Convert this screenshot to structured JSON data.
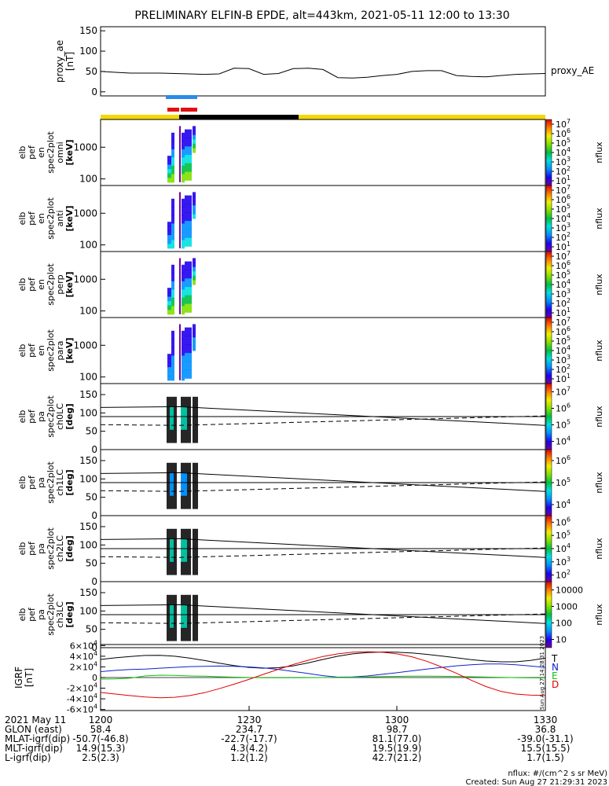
{
  "title": "PRELIMINARY ELFIN-B EPDE, alt=443km, 2021-05-11 12:00 to 13:30",
  "colors": {
    "bar_yellow": "#f5d800",
    "bar_black": "#000000",
    "mark_blue": "#2a8ce8",
    "mark_red": "#e01010",
    "grf_black": "#000000",
    "grf_blue": "#1020d0",
    "grf_green": "#10c010",
    "grf_red": "#e00000"
  },
  "chart_data": [
    {
      "type": "line",
      "panel": "proxy_ae",
      "ylabel": "proxy_ae\n[nT]",
      "ylim": [
        -10,
        160
      ],
      "yticks": [
        0,
        50,
        100,
        150
      ],
      "legend": "proxy_AE",
      "x": [
        0,
        3,
        6,
        9,
        12,
        15,
        18,
        21,
        24,
        27,
        30,
        33,
        36,
        39,
        42,
        45,
        48,
        51,
        54,
        57,
        60,
        63,
        66,
        69,
        72,
        75,
        78,
        81,
        84,
        87,
        90
      ],
      "values": [
        50,
        48,
        46,
        46,
        46,
        45,
        44,
        43,
        44,
        58,
        57,
        43,
        45,
        57,
        58,
        55,
        35,
        34,
        36,
        40,
        43,
        50,
        52,
        52,
        40,
        38,
        37,
        40,
        43,
        44,
        45
      ]
    },
    {
      "type": "heatmap",
      "panel": "omni",
      "ylabel": "elb\npef\nen\nspec2plot\nomni\n[keV]",
      "yticks": [
        "100",
        "1000"
      ],
      "colorbar": {
        "label": "nflux",
        "ticks": [
          "10^1",
          "10^2",
          "10^3",
          "10^4",
          "10^5",
          "10^6",
          "10^7"
        ]
      }
    },
    {
      "type": "heatmap",
      "panel": "anti",
      "ylabel": "elb\npef\nen\nspec2plot\nanti\n[keV]",
      "yticks": [
        "100",
        "1000"
      ],
      "colorbar": {
        "label": "nflux",
        "ticks": [
          "10^1",
          "10^2",
          "10^3",
          "10^4",
          "10^5",
          "10^6",
          "10^7"
        ]
      }
    },
    {
      "type": "heatmap",
      "panel": "perp",
      "ylabel": "elb\npef\nen\nspec2plot\nperp\n[keV]",
      "yticks": [
        "100",
        "1000"
      ],
      "colorbar": {
        "label": "nflux",
        "ticks": [
          "10^1",
          "10^2",
          "10^3",
          "10^4",
          "10^5",
          "10^6",
          "10^7"
        ]
      }
    },
    {
      "type": "heatmap",
      "panel": "para",
      "ylabel": "elb\npef\nen\nspec2plot\npara\n[keV]",
      "yticks": [
        "100",
        "1000"
      ],
      "colorbar": {
        "label": "nflux",
        "ticks": [
          "10^1",
          "10^2",
          "10^3",
          "10^4",
          "10^5",
          "10^6",
          "10^7"
        ]
      }
    },
    {
      "type": "heatmap",
      "panel": "ch0LC",
      "ylabel": "elb\npef\npa\nspec2plot\nch0LC\n[deg]",
      "yticks": [
        "0",
        "50",
        "100",
        "150"
      ],
      "colorbar": {
        "label": "nflux",
        "ticks": [
          "10^4",
          "10^5",
          "10^6",
          "10^7"
        ]
      }
    },
    {
      "type": "heatmap",
      "panel": "ch1LC",
      "ylabel": "elb\npef\npa\nspec2plot\nch1LC\n[deg]",
      "yticks": [
        "0",
        "50",
        "100",
        "150"
      ],
      "colorbar": {
        "label": "nflux",
        "ticks": [
          "10^4",
          "10^5",
          "10^6"
        ]
      }
    },
    {
      "type": "heatmap",
      "panel": "ch2LC",
      "ylabel": "elb\npef\npa\nspec2plot\nch2LC\n[deg]",
      "yticks": [
        "0",
        "50",
        "100",
        "150"
      ],
      "colorbar": {
        "label": "nflux",
        "ticks": [
          "10^2",
          "10^3",
          "10^4",
          "10^5",
          "10^6"
        ]
      }
    },
    {
      "type": "heatmap",
      "panel": "ch3LC",
      "ylabel": "elb\npef\npa\nspec2plot\nch3LC\n[deg]",
      "yticks": [
        "0",
        "50",
        "100",
        "150"
      ],
      "colorbar": {
        "label": "nflux",
        "ticks": [
          "10",
          "100",
          "1000",
          "10000"
        ]
      }
    },
    {
      "type": "line",
      "panel": "IGRF",
      "ylabel": "IGRF\n[nT]",
      "ylim": [
        -62000,
        62000
      ],
      "yticks": [
        "-6×10^4",
        "-4×10^4",
        "-2×10^4",
        "0",
        "2×10^4",
        "4×10^4",
        "6×10^4"
      ],
      "x": [
        0,
        3,
        6,
        9,
        12,
        15,
        18,
        21,
        24,
        27,
        30,
        33,
        36,
        39,
        42,
        45,
        48,
        51,
        54,
        57,
        60,
        63,
        66,
        69,
        72,
        75,
        78,
        81,
        84,
        87,
        90
      ],
      "series": [
        {
          "name": "T",
          "color": "#000000",
          "values": [
            34000,
            37000,
            39500,
            41500,
            41800,
            40000,
            36500,
            32000,
            27000,
            22500,
            19000,
            17500,
            18500,
            22000,
            27500,
            34000,
            40000,
            44500,
            47000,
            48000,
            47500,
            46000,
            43500,
            40500,
            37000,
            33500,
            31000,
            29500,
            29500,
            32000,
            36500
          ]
        },
        {
          "name": "N",
          "color": "#1020d0",
          "values": [
            11000,
            13500,
            15000,
            16000,
            17500,
            19000,
            20500,
            21000,
            21500,
            21000,
            20000,
            18000,
            15000,
            11500,
            7500,
            3500,
            800,
            1000,
            3000,
            6000,
            9000,
            12500,
            16000,
            19000,
            22000,
            24000,
            25500,
            25500,
            24000,
            21500,
            19000
          ]
        },
        {
          "name": "E",
          "color": "#10c010",
          "values": [
            -3000,
            -2500,
            -1000,
            3000,
            4500,
            4000,
            3000,
            2500,
            1500,
            800,
            200,
            -300,
            -500,
            -400,
            -200,
            0,
            200,
            600,
            1200,
            1800,
            2200,
            2500,
            2600,
            2400,
            2000,
            1500,
            900,
            300,
            -200,
            -600,
            -800
          ]
        },
        {
          "name": "D",
          "color": "#e00000",
          "values": [
            -28000,
            -31000,
            -34000,
            -36500,
            -38000,
            -37000,
            -34000,
            -28500,
            -21000,
            -12500,
            -3500,
            6000,
            15500,
            24500,
            32500,
            39500,
            44500,
            47500,
            48500,
            47500,
            44500,
            39000,
            30500,
            20000,
            8000,
            -5000,
            -17000,
            -26000,
            -31000,
            -33000,
            -33500
          ]
        }
      ]
    }
  ],
  "time_axis": {
    "row_labels": [
      "2021 May 11",
      "GLON (east)",
      "MLAT-igrf(dip)",
      "MLT-igrf(dip)",
      "L-igrf(dip)"
    ],
    "columns": [
      {
        "values": [
          "1200",
          "58.4",
          "-50.7(-46.8)",
          "14.9(15.3)",
          "2.5(2.3)"
        ]
      },
      {
        "values": [
          "1230",
          "234.7",
          "-22.7(-17.7)",
          "4.3(4.2)",
          "1.2(1.2)"
        ]
      },
      {
        "values": [
          "1300",
          "98.7",
          "81.1(77.0)",
          "19.5(19.9)",
          "42.7(21.2)"
        ]
      },
      {
        "values": [
          "1330",
          "36.8",
          "-39.0(-31.1)",
          "15.5(15.5)",
          "1.7(1.5)"
        ]
      }
    ]
  },
  "vertical_stamp": "Sun Aug 27 14:28:31 2023",
  "footer": {
    "units": "nflux: #/(cm^2 s sr MeV)",
    "created": "Created: Sun Aug 27 21:29:31 2023"
  }
}
